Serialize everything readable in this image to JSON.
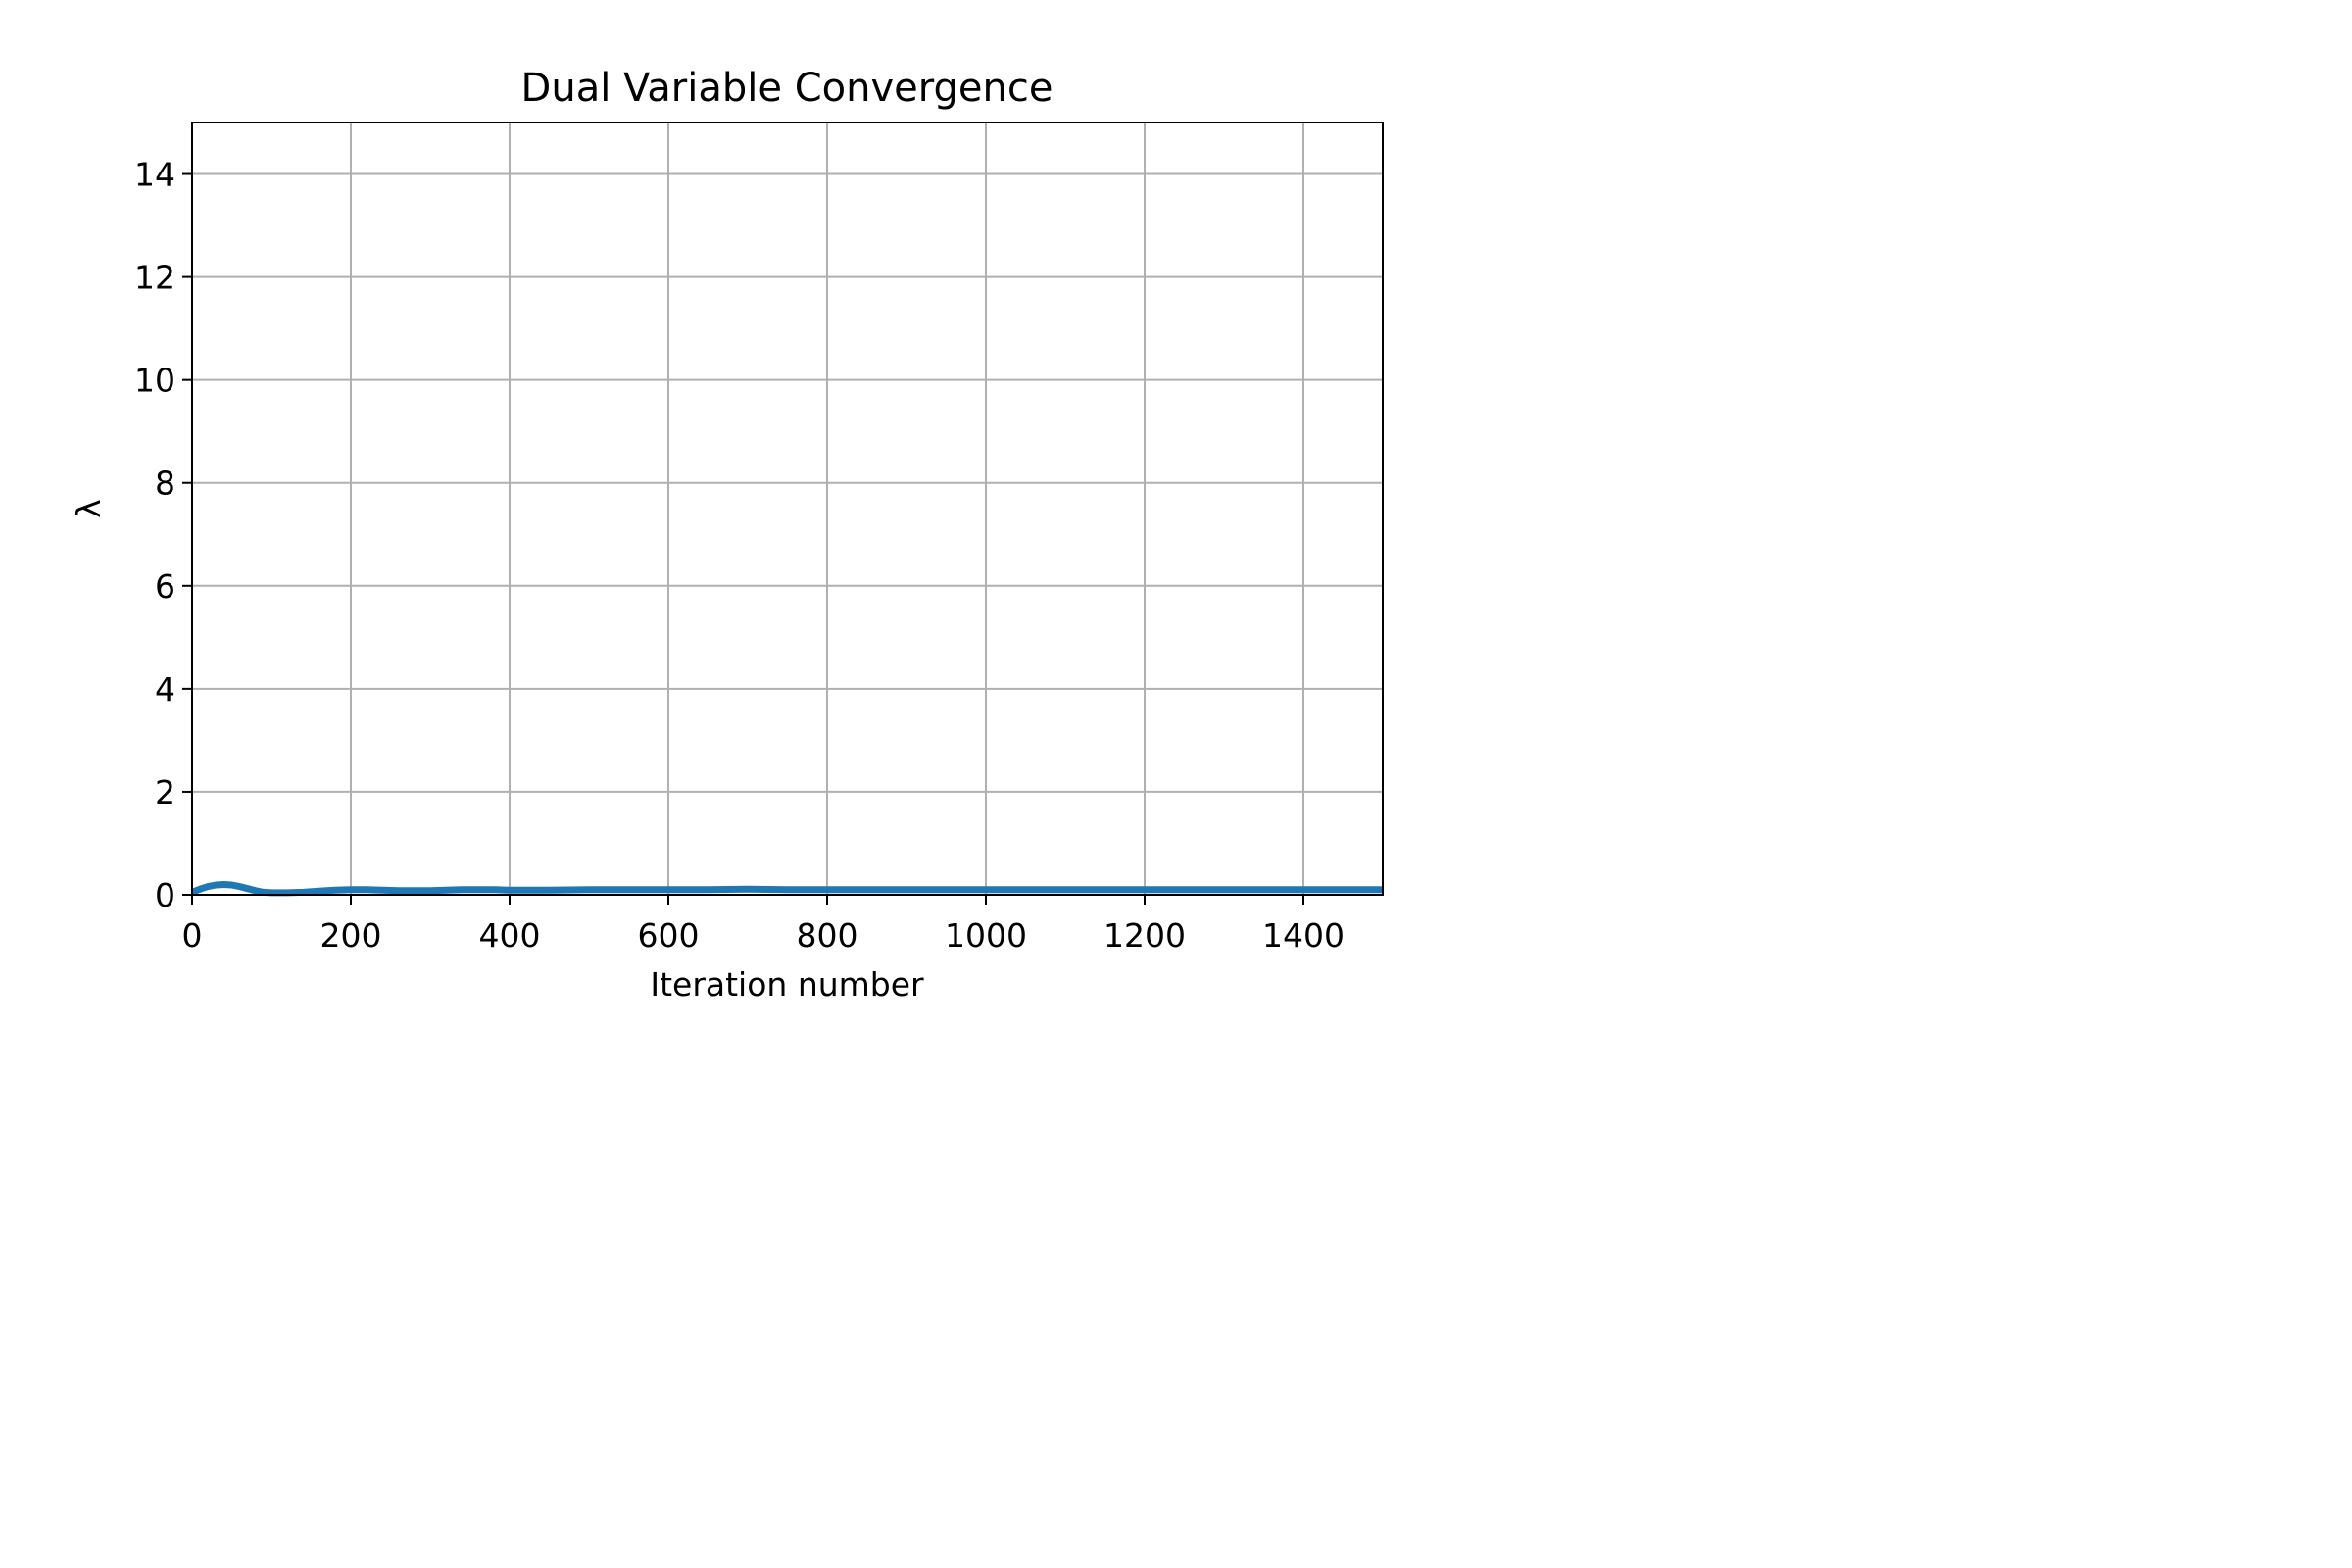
{
  "chart_data": {
    "type": "line",
    "title": "Dual Variable Convergence",
    "xlabel": "Iteration number",
    "ylabel": "λ",
    "xlim": [
      0,
      1500
    ],
    "ylim": [
      0,
      15
    ],
    "x_ticks": [
      0,
      200,
      400,
      600,
      800,
      1000,
      1200,
      1400
    ],
    "y_ticks": [
      0,
      2,
      4,
      6,
      8,
      10,
      12,
      14
    ],
    "grid": true,
    "series": [
      {
        "color": "#1f77b4",
        "x": [
          0,
          10,
          20,
          30,
          40,
          50,
          60,
          70,
          80,
          90,
          100,
          120,
          140,
          160,
          180,
          200,
          220,
          240,
          260,
          280,
          300,
          320,
          340,
          360,
          380,
          400,
          450,
          500,
          550,
          600,
          650,
          700,
          750,
          800,
          900,
          1000,
          1100,
          1200,
          1300,
          1400,
          1500
        ],
        "y": [
          0.05,
          0.11,
          0.16,
          0.19,
          0.2,
          0.19,
          0.16,
          0.12,
          0.08,
          0.05,
          0.04,
          0.04,
          0.05,
          0.07,
          0.09,
          0.1,
          0.1,
          0.09,
          0.08,
          0.08,
          0.08,
          0.09,
          0.1,
          0.1,
          0.1,
          0.09,
          0.09,
          0.1,
          0.1,
          0.1,
          0.1,
          0.11,
          0.1,
          0.1,
          0.1,
          0.1,
          0.1,
          0.1,
          0.1,
          0.1,
          0.1
        ]
      }
    ]
  }
}
